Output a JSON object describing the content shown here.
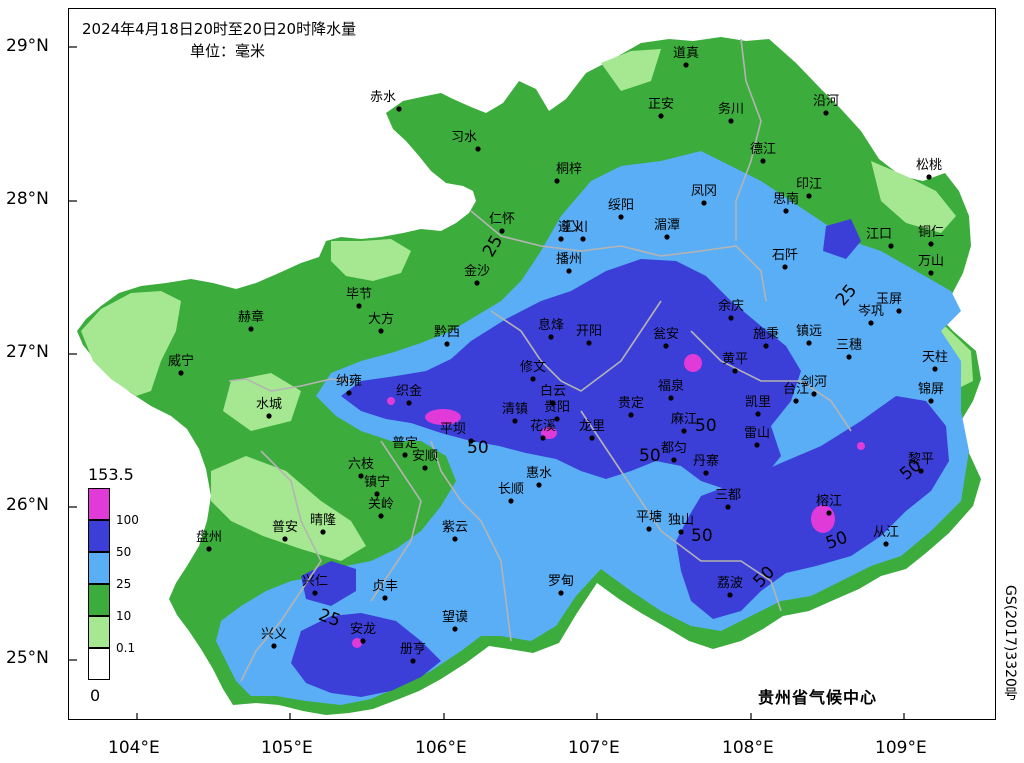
{
  "title": "2024年4月18日20时至20日20时降水量",
  "unit": "单位：毫米",
  "credit": "贵州省气候中心",
  "side_code": "GS(2017)3320号",
  "axes": {
    "lat_labels": [
      "29°N",
      "28°N",
      "27°N",
      "26°N",
      "25°N"
    ],
    "lon_labels": [
      "104°E",
      "105°E",
      "106°E",
      "107°E",
      "108°E",
      "109°E"
    ]
  },
  "legend": {
    "max_label": "153.5",
    "min_label": "0",
    "classes": [
      {
        "label": "100",
        "color": "#e03ad8"
      },
      {
        "label": "50",
        "color": "#3b3fd8"
      },
      {
        "label": "25",
        "color": "#5aaef5"
      },
      {
        "label": "10",
        "color": "#3cac3c"
      },
      {
        "label": "0.1",
        "color": "#a6e892"
      },
      {
        "label": "",
        "color": "#ffffff"
      }
    ]
  },
  "colors": {
    "heavy": "#e03ad8",
    "rainstorm": "#3b3fd8",
    "large": "#5aaef5",
    "moderate": "#3cac3c",
    "light": "#a6e892",
    "boundary": "#b4b4b4"
  },
  "contour_labels": [
    "25",
    "25",
    "25",
    "50",
    "50",
    "50",
    "50",
    "50",
    "50"
  ],
  "cities": [
    "赤水",
    "习水",
    "道真",
    "正安",
    "务川",
    "沿河",
    "桐梓",
    "德江",
    "松桃",
    "绥阳",
    "凤冈",
    "思南",
    "印江",
    "仁怀",
    "遵义",
    "湄潭",
    "江口",
    "铜仁",
    "汇川",
    "金沙",
    "播州",
    "石阡",
    "万山",
    "毕节",
    "大方",
    "余庆",
    "玉屏",
    "岑巩",
    "赫章",
    "黔西",
    "息烽",
    "开阳",
    "瓮安",
    "施秉",
    "镇远",
    "三穗",
    "天柱",
    "威宁",
    "纳雍",
    "修文",
    "黄平",
    "织金",
    "白云",
    "清镇",
    "福泉",
    "台江",
    "剑河",
    "锦屏",
    "水城",
    "贵阳",
    "凯里",
    "平坝",
    "麻江",
    "雷山",
    "六枝",
    "普定",
    "安顺",
    "花溪",
    "龙里",
    "都匀",
    "丹寨",
    "黎平",
    "镇宁",
    "惠水",
    "贵定",
    "关岭",
    "长顺",
    "三都",
    "榕江",
    "普安",
    "晴隆",
    "紫云",
    "平塘",
    "独山",
    "从江",
    "盘州",
    "兴仁",
    "贞丰",
    "罗甸",
    "荔波",
    "兴义",
    "安龙",
    "望谟",
    "册亨"
  ]
}
